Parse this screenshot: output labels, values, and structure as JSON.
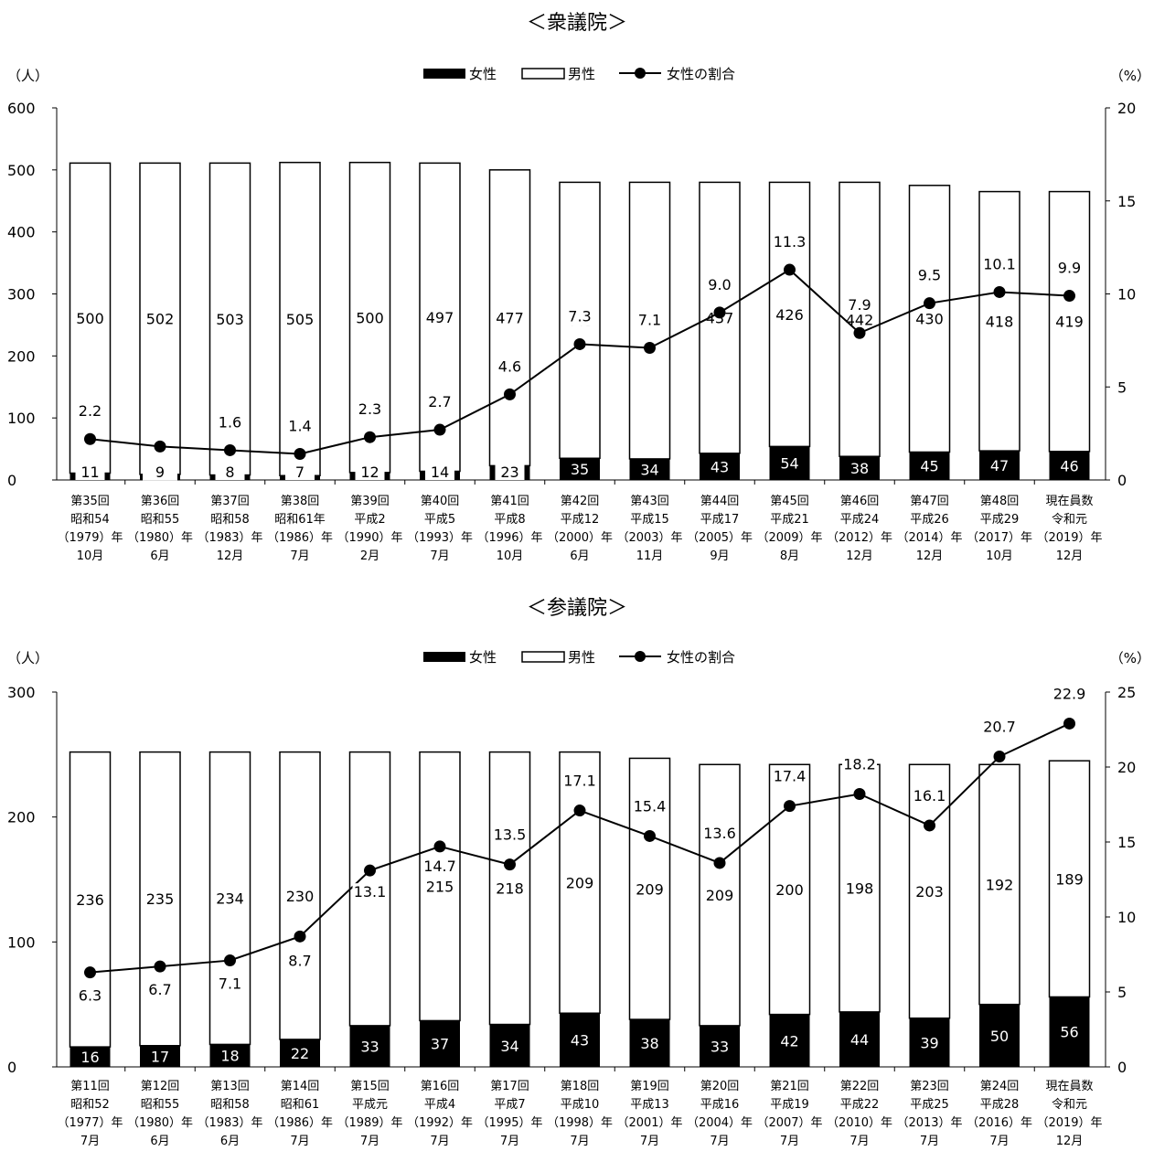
{
  "chart_data": [
    {
      "type": "bar",
      "title": "＜衆議院＞",
      "y_unit_left": "（人）",
      "y_unit_right": "（%）",
      "ylim": [
        0,
        600
      ],
      "y_ticks": [
        0,
        100,
        200,
        300,
        400,
        500,
        600
      ],
      "ylim_right": [
        0,
        20
      ],
      "y_ticks_right": [
        0,
        5,
        10,
        15,
        20
      ],
      "legend": {
        "position": "top-center",
        "female": "女性",
        "male": "男性",
        "ratio": "女性の割合"
      },
      "categories": [
        [
          "第35回",
          "昭和54",
          "（1979）年",
          "10月"
        ],
        [
          "第36回",
          "昭和55",
          "（1980）年",
          "6月"
        ],
        [
          "第37回",
          "昭和58",
          "（1983）年",
          "12月"
        ],
        [
          "第38回",
          "昭和61年",
          "（1986）年",
          "7月"
        ],
        [
          "第39回",
          "平成2",
          "（1990）年",
          "2月"
        ],
        [
          "第40回",
          "平成5",
          "（1993）年",
          "7月"
        ],
        [
          "第41回",
          "平成8",
          "（1996）年",
          "10月"
        ],
        [
          "第42回",
          "平成12",
          "（2000）年",
          "6月"
        ],
        [
          "第43回",
          "平成15",
          "（2003）年",
          "11月"
        ],
        [
          "第44回",
          "平成17",
          "（2005）年",
          "9月"
        ],
        [
          "第45回",
          "平成21",
          "（2009）年",
          "8月"
        ],
        [
          "第46回",
          "平成24",
          "（2012）年",
          "12月"
        ],
        [
          "第47回",
          "平成26",
          "（2014）年",
          "12月"
        ],
        [
          "第48回",
          "平成29",
          "（2017）年",
          "10月"
        ],
        [
          "現在員数",
          "令和元",
          "（2019）年",
          "12月"
        ]
      ],
      "series": [
        {
          "name": "女性",
          "values": [
            11,
            9,
            8,
            7,
            12,
            14,
            23,
            35,
            34,
            43,
            54,
            38,
            45,
            47,
            46
          ]
        },
        {
          "name": "男性",
          "values": [
            500,
            502,
            503,
            505,
            500,
            497,
            477,
            445,
            446,
            437,
            426,
            442,
            430,
            418,
            419
          ]
        },
        {
          "name": "女性の割合",
          "axis": "right",
          "values": [
            2.2,
            1.8,
            1.6,
            1.4,
            2.3,
            2.7,
            4.6,
            7.3,
            7.1,
            9.0,
            11.3,
            7.9,
            9.5,
            10.1,
            9.9
          ]
        }
      ]
    },
    {
      "type": "bar",
      "title": "＜参議院＞",
      "y_unit_left": "（人）",
      "y_unit_right": "（%）",
      "ylim": [
        0,
        300
      ],
      "y_ticks": [
        0,
        100,
        200,
        300
      ],
      "ylim_right": [
        0,
        25
      ],
      "y_ticks_right": [
        0,
        5,
        10,
        15,
        20,
        25
      ],
      "legend": {
        "position": "top-center",
        "female": "女性",
        "male": "男性",
        "ratio": "女性の割合"
      },
      "categories": [
        [
          "第11回",
          "昭和52",
          "（1977）年",
          "7月"
        ],
        [
          "第12回",
          "昭和55",
          "（1980）年",
          "6月"
        ],
        [
          "第13回",
          "昭和58",
          "（1983）年",
          "6月"
        ],
        [
          "第14回",
          "昭和61",
          "（1986）年",
          "7月"
        ],
        [
          "第15回",
          "平成元",
          "（1989）年",
          "7月"
        ],
        [
          "第16回",
          "平成4",
          "（1992）年",
          "7月"
        ],
        [
          "第17回",
          "平成7",
          "（1995）年",
          "7月"
        ],
        [
          "第18回",
          "平成10",
          "（1998）年",
          "7月"
        ],
        [
          "第19回",
          "平成13",
          "（2001）年",
          "7月"
        ],
        [
          "第20回",
          "平成16",
          "（2004）年",
          "7月"
        ],
        [
          "第21回",
          "平成19",
          "（2007）年",
          "7月"
        ],
        [
          "第22回",
          "平成22",
          "（2010）年",
          "7月"
        ],
        [
          "第23回",
          "平成25",
          "（2013）年",
          "7月"
        ],
        [
          "第24回",
          "平成28",
          "（2016）年",
          "7月"
        ],
        [
          "現在員数",
          "令和元",
          "（2019）年",
          "12月"
        ]
      ],
      "series": [
        {
          "name": "女性",
          "values": [
            16,
            17,
            18,
            22,
            33,
            37,
            34,
            43,
            38,
            33,
            42,
            44,
            39,
            50,
            56
          ]
        },
        {
          "name": "男性",
          "values": [
            236,
            235,
            234,
            230,
            219,
            215,
            218,
            209,
            209,
            209,
            200,
            198,
            203,
            192,
            189
          ]
        },
        {
          "name": "女性の割合",
          "axis": "right",
          "values": [
            6.3,
            6.7,
            7.1,
            8.7,
            13.1,
            14.7,
            13.5,
            17.1,
            15.4,
            13.6,
            17.4,
            18.2,
            16.1,
            20.7,
            22.9
          ]
        }
      ]
    }
  ]
}
